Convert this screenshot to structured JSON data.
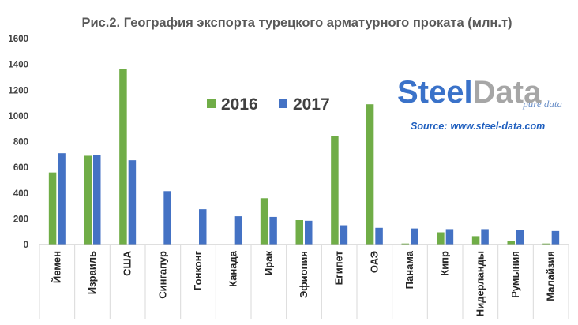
{
  "chart_data": {
    "type": "bar",
    "title": "Рис.2. География экспорта турецкого арматурного проката (млн.т)",
    "xlabel": "",
    "ylabel": "",
    "ylim": [
      0,
      1600
    ],
    "yticks": [
      "0",
      "200",
      "400",
      "600",
      "800",
      "1000",
      "1200",
      "1400",
      "1600"
    ],
    "grid": false,
    "legend_position": "top-center",
    "categories": [
      "Йемен",
      "Израиль",
      "США",
      "Сингапур",
      "Гонконг",
      "Канада",
      "Ирак",
      "Эфиопия",
      "Египет",
      "ОАЭ",
      "Панама",
      "Кипр",
      "Нидерланды",
      "Румыния",
      "Малайзия"
    ],
    "series": [
      {
        "name": "2016",
        "color": "#70ad47",
        "values": [
          560,
          690,
          1365,
          0,
          0,
          0,
          360,
          190,
          845,
          1090,
          8,
          95,
          65,
          25,
          8
        ]
      },
      {
        "name": "2017",
        "color": "#4472c4",
        "values": [
          710,
          695,
          655,
          415,
          275,
          220,
          215,
          185,
          150,
          130,
          125,
          120,
          120,
          115,
          105
        ]
      }
    ]
  },
  "logo": {
    "text_steel": "Steel",
    "text_data": "Data",
    "tagline": "pure data",
    "steel_color": "#3a72c9",
    "data_color": "#a6a6a6"
  },
  "source": {
    "label": "Source:",
    "url": "www.steel-data.com"
  }
}
